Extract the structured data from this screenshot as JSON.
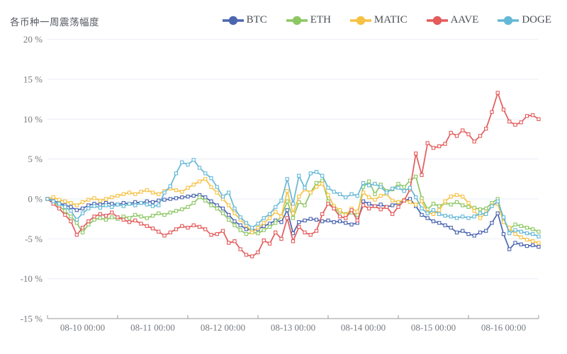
{
  "chart_data": {
    "type": "line",
    "title": "各币种一周震荡幅度",
    "legend_position": "top-right",
    "grid": "horizontal-only",
    "marker": "open-square",
    "x_axis": {
      "labels": [
        "08-10 00:00",
        "08-11 00:00",
        "08-12 00:00",
        "08-13 00:00",
        "08-14 00:00",
        "08-15 00:00",
        "08-16 00:00"
      ],
      "points_per_day": 12,
      "total_points": 85
    },
    "y_axis": {
      "unit": "%",
      "min": -15,
      "max": 20,
      "step": 5,
      "tick_labels": [
        "20 %",
        "15 %",
        "10 %",
        "5 %",
        "0 %",
        "-5 %",
        "-10 %",
        "-15 %"
      ]
    },
    "colors": {
      "grid_line": "#e9eef5",
      "axis_line": "#999999",
      "tick_label": "#757a80",
      "title_text": "#555a61"
    },
    "series": [
      {
        "name": "BTC",
        "color": "#4b65b0",
        "values": [
          0.0,
          -0.2,
          -0.5,
          -0.8,
          -1.0,
          -1.4,
          -1.2,
          -0.8,
          -0.6,
          -0.7,
          -0.5,
          -0.6,
          -0.7,
          -0.5,
          -0.6,
          -0.4,
          -0.5,
          -0.3,
          -0.4,
          -0.2,
          -0.1,
          0.0,
          0.1,
          0.2,
          0.3,
          0.4,
          0.5,
          0.2,
          -0.3,
          -0.8,
          -1.2,
          -2.0,
          -2.8,
          -3.3,
          -3.8,
          -3.9,
          -3.8,
          -3.4,
          -3.1,
          -2.7,
          -2.9,
          -1.4,
          -4.3,
          -2.9,
          -2.7,
          -2.5,
          -2.6,
          -2.8,
          -2.7,
          -2.9,
          -2.8,
          -3.0,
          -3.2,
          -3.0,
          -0.3,
          -0.6,
          -0.9,
          -0.7,
          -1.0,
          -0.8,
          -0.5,
          -0.2,
          0.0,
          -0.9,
          -2.0,
          -2.4,
          -2.8,
          -3.0,
          -3.3,
          -3.6,
          -4.2,
          -4.0,
          -4.4,
          -4.6,
          -4.2,
          -4.0,
          -3.0,
          -1.8,
          -4.4,
          -6.3,
          -5.5,
          -5.7,
          -5.9,
          -5.8,
          -6.0
        ]
      },
      {
        "name": "ETH",
        "color": "#8cc763",
        "values": [
          0.0,
          -0.4,
          -0.9,
          -1.5,
          -2.2,
          -3.0,
          -4.2,
          -3.2,
          -2.6,
          -2.4,
          -2.6,
          -2.3,
          -2.5,
          -2.2,
          -2.4,
          -2.0,
          -2.2,
          -2.4,
          -2.1,
          -1.8,
          -2.0,
          -1.7,
          -1.5,
          -1.3,
          -1.0,
          -0.5,
          0.2,
          -0.2,
          -0.8,
          -1.2,
          -1.8,
          -2.6,
          -3.3,
          -3.9,
          -4.4,
          -4.2,
          -4.3,
          -3.9,
          -3.5,
          -3.0,
          -2.2,
          -0.3,
          -2.4,
          -0.4,
          -0.8,
          0.8,
          2.0,
          2.3,
          -0.3,
          -1.2,
          -1.6,
          -1.9,
          -1.7,
          -2.0,
          1.5,
          2.2,
          0.6,
          1.8,
          1.0,
          1.2,
          1.9,
          1.5,
          2.3,
          2.8,
          0.1,
          -1.3,
          -0.6,
          -0.9,
          -0.5,
          -0.7,
          -0.4,
          -0.8,
          -1.0,
          -1.1,
          -1.3,
          -1.2,
          -0.5,
          0.0,
          -2.6,
          -3.8,
          -3.2,
          -3.4,
          -3.6,
          -3.8,
          -4.1
        ]
      },
      {
        "name": "MATIC",
        "color": "#f6c244",
        "values": [
          0.0,
          0.2,
          -0.1,
          -0.3,
          -0.5,
          -0.8,
          -0.4,
          -0.1,
          0.1,
          -0.2,
          0.0,
          0.2,
          0.4,
          0.6,
          0.8,
          0.6,
          0.9,
          1.1,
          0.8,
          0.6,
          1.0,
          1.3,
          1.1,
          0.9,
          1.4,
          1.8,
          2.2,
          2.5,
          1.5,
          0.8,
          0.0,
          -0.8,
          -1.8,
          -2.6,
          -3.3,
          -4.2,
          -3.6,
          -3.0,
          -2.4,
          -1.6,
          -2.2,
          1.0,
          -1.8,
          0.3,
          1.2,
          0.8,
          1.5,
          1.9,
          0.5,
          -0.9,
          -1.4,
          -2.0,
          -1.2,
          -1.6,
          0.8,
          0.2,
          -0.1,
          0.4,
          0.6,
          -0.2,
          -0.4,
          -0.1,
          -0.4,
          -0.7,
          -0.3,
          -1.7,
          -1.9,
          -1.4,
          -0.3,
          0.3,
          0.5,
          0.3,
          -0.5,
          -1.5,
          -2.4,
          -1.8,
          -0.8,
          -0.6,
          -2.9,
          -3.6,
          -4.4,
          -4.8,
          -5.1,
          -5.3,
          -5.5
        ]
      },
      {
        "name": "AAVE",
        "color": "#e45b5b",
        "values": [
          0.0,
          -0.6,
          -1.2,
          -2.0,
          -2.8,
          -4.5,
          -3.6,
          -2.8,
          -2.2,
          -1.9,
          -2.1,
          -1.7,
          -2.3,
          -2.6,
          -2.9,
          -2.7,
          -3.1,
          -3.4,
          -3.7,
          -4.1,
          -4.6,
          -4.2,
          -3.8,
          -3.4,
          -3.6,
          -3.3,
          -3.5,
          -3.8,
          -4.5,
          -4.4,
          -4.0,
          -5.5,
          -5.3,
          -6.3,
          -7.0,
          -7.2,
          -6.7,
          -5.2,
          -5.6,
          -4.2,
          -5.0,
          -2.4,
          -5.3,
          -3.5,
          -4.2,
          -4.5,
          -4.0,
          -1.9,
          -0.6,
          -1.2,
          -2.2,
          -2.4,
          -1.4,
          -2.7,
          -0.8,
          -1.2,
          -0.9,
          -1.3,
          -1.0,
          -1.9,
          -1.0,
          -0.2,
          1.2,
          5.7,
          3.0,
          7.0,
          6.4,
          6.6,
          6.9,
          8.3,
          7.9,
          8.6,
          8.1,
          7.2,
          7.9,
          8.8,
          10.9,
          13.3,
          11.2,
          9.7,
          9.3,
          9.6,
          10.4,
          10.5,
          10.0
        ]
      },
      {
        "name": "DOGE",
        "color": "#64b8d7",
        "values": [
          0.0,
          -0.3,
          -0.6,
          -1.0,
          -1.5,
          -2.6,
          -1.8,
          -1.2,
          -0.9,
          -1.1,
          -0.8,
          -1.0,
          -0.7,
          -0.9,
          -0.6,
          -0.8,
          -0.5,
          -0.7,
          -0.9,
          -0.8,
          0.8,
          1.6,
          3.2,
          4.6,
          4.3,
          4.9,
          3.9,
          3.2,
          2.6,
          1.5,
          0.3,
          0.8,
          -1.2,
          -2.3,
          -3.0,
          -3.6,
          -3.1,
          -2.4,
          -1.9,
          -1.0,
          -0.2,
          2.5,
          -0.6,
          2.9,
          1.4,
          3.2,
          3.4,
          2.9,
          1.4,
          0.9,
          0.6,
          0.2,
          0.6,
          0.4,
          2.0,
          1.7,
          1.9,
          1.5,
          0.8,
          1.3,
          1.4,
          1.0,
          1.4,
          0.2,
          -1.2,
          -1.8,
          -1.4,
          -1.9,
          -2.1,
          -2.2,
          -2.4,
          -2.2,
          -2.4,
          -2.2,
          -1.8,
          -1.9,
          -0.9,
          -0.3,
          -2.3,
          -4.3,
          -3.9,
          -4.1,
          -4.3,
          -4.4,
          -4.7
        ]
      }
    ]
  }
}
